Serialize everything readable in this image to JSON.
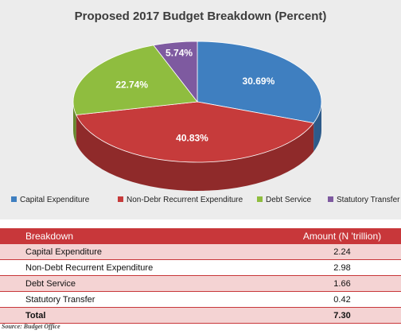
{
  "chart_data": {
    "type": "pie",
    "title": "Proposed 2017 Budget Breakdown (Percent)",
    "slices": [
      {
        "name": "Capital Expenditure",
        "value": 30.69,
        "label": "30.69%",
        "color": "#3f7fc0"
      },
      {
        "name": "Non-Debr Recurrent Expenditure",
        "value": 40.83,
        "label": "40.83%",
        "color": "#c63b3b"
      },
      {
        "name": "Debt Service",
        "value": 22.74,
        "label": "22.74%",
        "color": "#8fbd3f"
      },
      {
        "name": "Statutory Transfer",
        "value": 5.74,
        "label": "5.74%",
        "color": "#7e5aa0"
      }
    ],
    "legend_position": "bottom"
  },
  "table": {
    "headers": [
      "Breakdown",
      "Amount (N 'trillion)"
    ],
    "rows": [
      [
        "Capital Expenditure",
        "2.24"
      ],
      [
        "Non-Debt Recurrent Expenditure",
        "2.98"
      ],
      [
        "Debt Service",
        "1.66"
      ],
      [
        "Statutory Transfer",
        "0.42"
      ]
    ],
    "total": [
      "Total",
      "7.30"
    ]
  },
  "source": "Source: Budget Office"
}
